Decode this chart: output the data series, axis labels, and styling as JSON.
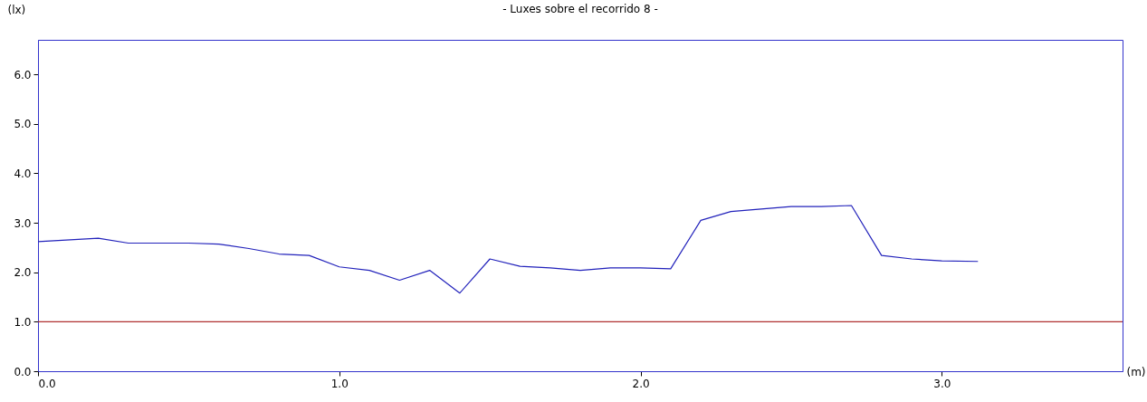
{
  "chart_data": {
    "type": "line",
    "title": "- Luxes sobre el recorrido 8 -",
    "xlabel": "(m)",
    "ylabel": "(lx)",
    "x": [
      0,
      0.2,
      0.3,
      0.5,
      0.6,
      0.7,
      0.8,
      0.9,
      1.0,
      1.1,
      1.2,
      1.3,
      1.4,
      1.5,
      1.6,
      1.7,
      1.8,
      1.9,
      2.0,
      2.1,
      2.2,
      2.3,
      2.4,
      2.5,
      2.6,
      2.7,
      2.8,
      2.9,
      3.0,
      3.12
    ],
    "series": [
      {
        "color": "#2222bb",
        "values": [
          2.62,
          2.69,
          2.59,
          2.59,
          2.57,
          2.48,
          2.37,
          2.34,
          2.11,
          2.04,
          1.84,
          2.04,
          1.58,
          2.27,
          2.12,
          2.09,
          2.04,
          2.09,
          2.09,
          2.07,
          3.05,
          3.23,
          3.28,
          3.33,
          3.33,
          3.35,
          2.34,
          2.27,
          2.23,
          2.22
        ]
      }
    ],
    "xlim": [
      0,
      3.6
    ],
    "ylim": [
      0,
      6.7
    ],
    "xticks": [
      {
        "value": 0,
        "label": "0.0"
      },
      {
        "value": 1,
        "label": "1.0"
      },
      {
        "value": 2,
        "label": "2.0"
      },
      {
        "value": 3,
        "label": "3.0"
      }
    ],
    "yticks": [
      {
        "value": 0,
        "label": "0.0"
      },
      {
        "value": 1,
        "label": "1.0"
      },
      {
        "value": 2,
        "label": "2.0"
      },
      {
        "value": 3,
        "label": "3.0"
      },
      {
        "value": 4,
        "label": "4.0"
      },
      {
        "value": 5,
        "label": "5.0"
      },
      {
        "value": 6,
        "label": "6.0"
      }
    ],
    "ref_lines": [
      {
        "axis": "y",
        "value": 1.0,
        "color": "#b03030"
      }
    ],
    "grid": false,
    "marker": "none",
    "line_style": "solid"
  }
}
